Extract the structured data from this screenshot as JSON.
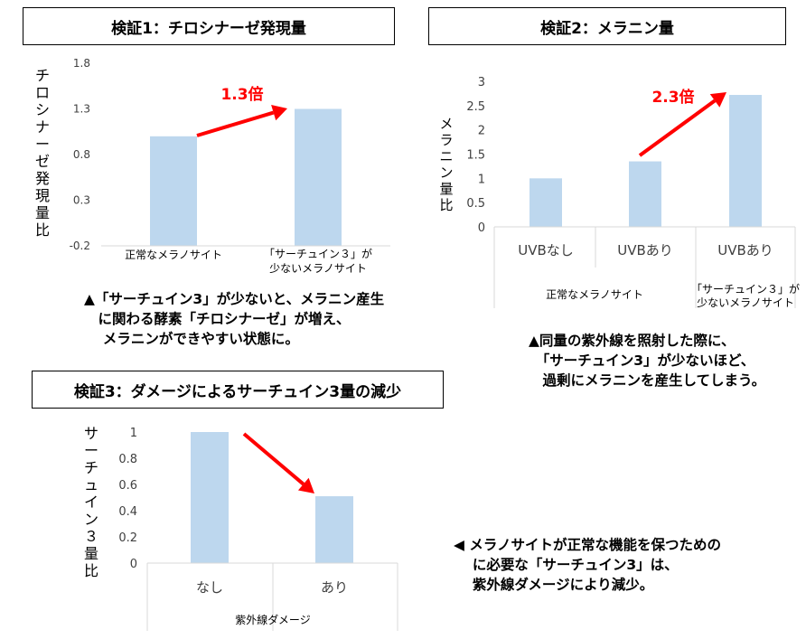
{
  "panel1": {
    "title": "検証1：チロシナーゼ発現量",
    "ylabel": "チロシナーゼ発現量比",
    "annotation": "1.3倍",
    "caption_lines": [
      "▲「サーチュイン3」が少ないと、メラニン産生",
      "　に関わる酵素「チロシナーゼ」が増え、",
      "　 メラニンができやすい状態に。"
    ]
  },
  "panel2": {
    "title": "検証2：メラニン量",
    "ylabel": "メラニン量比",
    "annotation": "2.3倍",
    "group1_label": "正常なメラノサイト",
    "group2_label_lines": [
      "「サーチュイン３」が",
      "少ないメラノサイト"
    ],
    "caption_lines": [
      "▲同量の紫外線を照射した際に、",
      "　「サーチュイン3」が少ないほど、",
      "　過剰にメラニンを産生してしまう。"
    ]
  },
  "panel3": {
    "title": "検証3：ダメージによるサーチュイン3量の減少",
    "ylabel": "サーチュイン３量比",
    "caption_lines": [
      "◀ メラノサイトが正常な機能を保つための",
      "　 に必要な「サーチュイン3」は、",
      "　 紫外線ダメージにより減少。"
    ]
  },
  "colors": {
    "bar": "#bdd7ee",
    "arrow": "#ff0000",
    "axis": "#d9d9d9",
    "tick_text": "#404040"
  },
  "chart_data": [
    {
      "type": "bar",
      "categories": [
        "正常なメラノサイト",
        "「サーチュイン３」が 少ないメラノサイト"
      ],
      "category_lines": [
        [
          "正常なメラノサイト"
        ],
        [
          "「サーチュイン３」が",
          "少ないメラノサイト"
        ]
      ],
      "values": [
        1.0,
        1.3
      ],
      "ylim": [
        -0.2,
        1.8
      ],
      "yticks": [
        "-0.2",
        "0.3",
        "0.8",
        "1.3",
        "1.8"
      ],
      "title": "検証1：チロシナーゼ発現量",
      "ylabel": "チロシナーゼ発現量比",
      "annotations": [
        "1.3倍"
      ],
      "grid": false
    },
    {
      "type": "bar",
      "categories": [
        "UVBなし",
        "UVBあり",
        "UVBあり"
      ],
      "groups": [
        "正常なメラノサイト",
        "正常なメラノサイト",
        "「サーチュイン３」が 少ないメラノサイト"
      ],
      "values": [
        1.0,
        1.35,
        2.72
      ],
      "ylim": [
        0,
        3
      ],
      "yticks": [
        "0",
        "0.5",
        "1",
        "1.5",
        "2",
        "2.5",
        "3"
      ],
      "title": "検証2：メラニン量",
      "ylabel": "メラニン量比",
      "annotations": [
        "2.3倍"
      ],
      "grid": false
    },
    {
      "type": "bar",
      "categories": [
        "なし",
        "あり"
      ],
      "values": [
        1.0,
        0.51
      ],
      "ylim": [
        0,
        1
      ],
      "yticks": [
        "0",
        "0.2",
        "0.4",
        "0.6",
        "0.8",
        "1"
      ],
      "title": "検証3：ダメージによるサーチュイン3量の減少",
      "xlabel": "紫外線ダメージ",
      "ylabel": "サーチュイン３量比",
      "grid": false
    }
  ]
}
